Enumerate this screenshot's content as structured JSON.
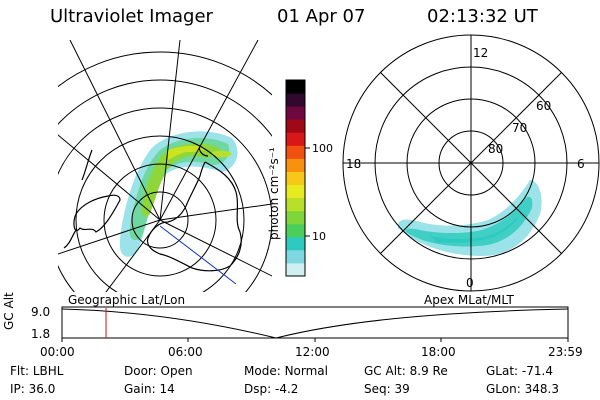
{
  "header": {
    "title": "Ultraviolet Imager",
    "date": "01 Apr 07",
    "time": "02:13:32 UT"
  },
  "colorbar": {
    "unit_label": "photon cm⁻²s⁻¹",
    "tick_labels": [
      "100",
      "10"
    ],
    "colors": [
      "#cfeff0",
      "#7fd8e0",
      "#2ec9c0",
      "#4ccf5a",
      "#7fd63a",
      "#b8e02a",
      "#e8ea20",
      "#f8c818",
      "#f89010",
      "#f05010",
      "#d81818",
      "#a00818",
      "#700840",
      "#300830",
      "#000000"
    ]
  },
  "left_panel": {
    "label": "Geographic Lat/Lon"
  },
  "right_panel": {
    "label": "Apex MLat/MLT",
    "mlt_labels": {
      "top": "12",
      "left": "18",
      "right": "6",
      "bottom": "0"
    },
    "lat_labels": [
      "60",
      "70",
      "80"
    ]
  },
  "altitude_plot": {
    "ylabel": "GC Alt",
    "ymax_label": "9.0",
    "ymin_label": "1.8",
    "time_ticks": [
      "00:00",
      "06:00",
      "12:00",
      "18:00",
      "23:59"
    ],
    "marker_color": "#d01010"
  },
  "info": {
    "filter_label": "Flt:",
    "filter_value": "LBHL",
    "door_label": "Door:",
    "door_value": "Open",
    "mode_label": "Mode:",
    "mode_value": "Normal",
    "gcalt_label": "GC Alt:",
    "gcalt_value": "8.9 Re",
    "glat_label": "GLat:",
    "glat_value": "-71.4",
    "ip_label": "IP:",
    "ip_value": "36.0",
    "gain_label": "Gain:",
    "gain_value": "14",
    "dsp_label": "Dsp:",
    "dsp_value": "-4.2",
    "seq_label": "Seq:",
    "seq_value": "39",
    "glon_label": "GLon:",
    "glon_value": "348.3"
  }
}
